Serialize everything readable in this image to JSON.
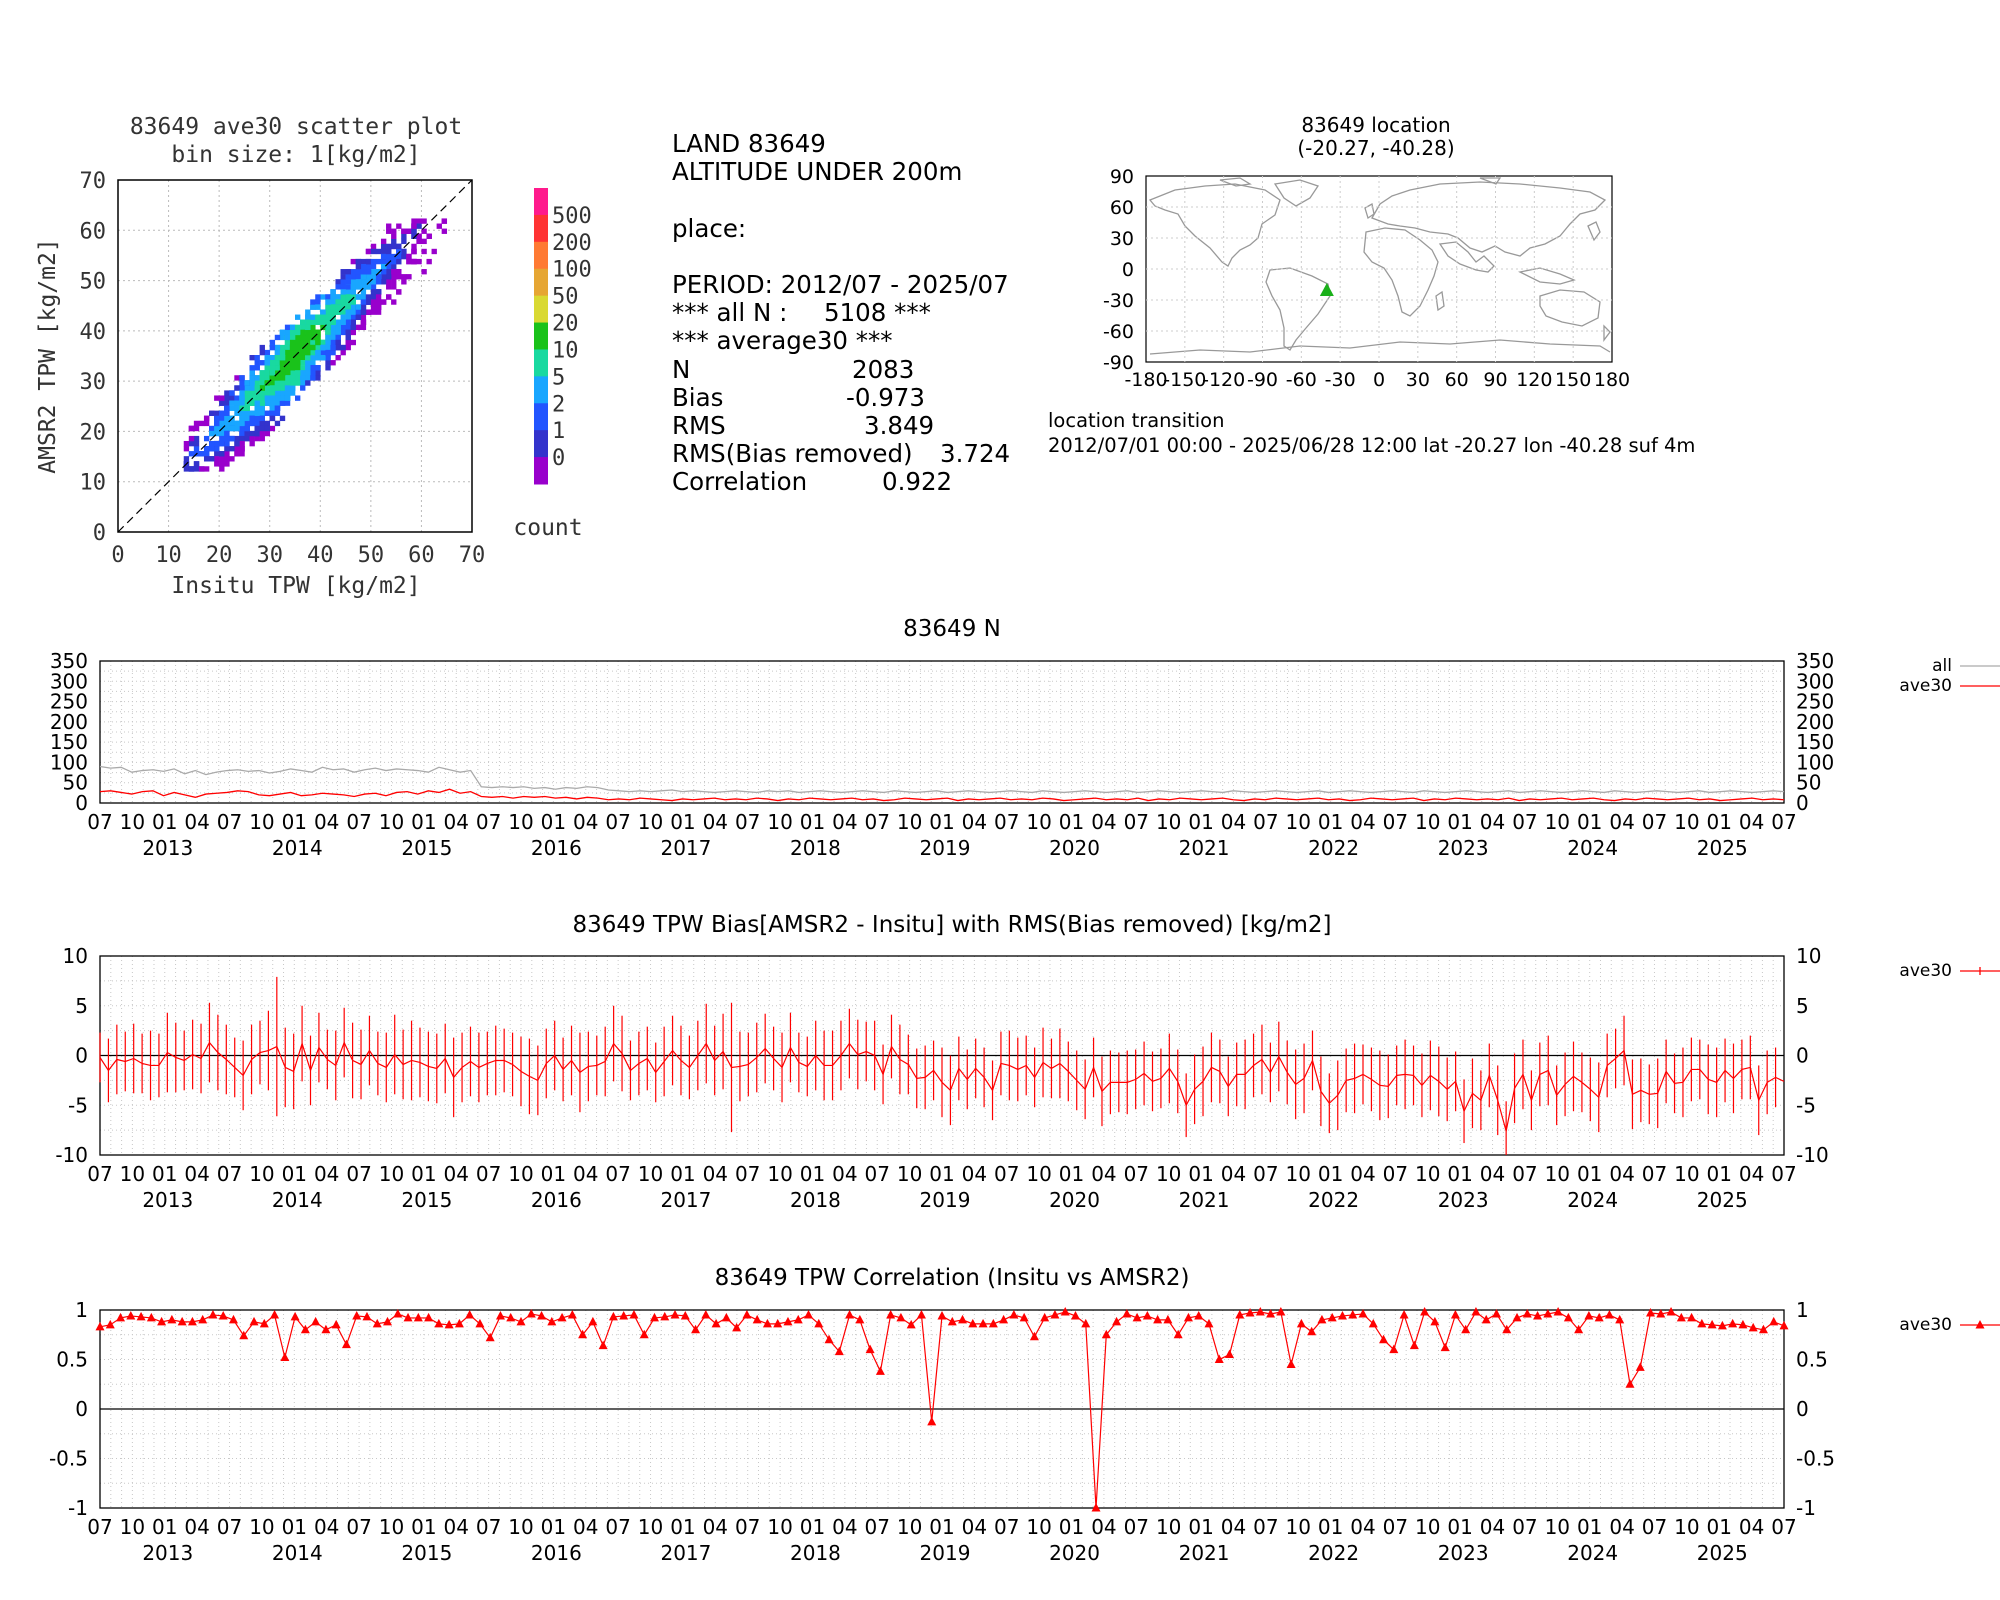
{
  "scatter": {
    "title_line1": "83649 ave30 scatter plot",
    "title_line2": "bin size: 1[kg/m2]",
    "xlabel": "Insitu TPW [kg/m2]",
    "ylabel": "AMSR2 TPW [kg/m2]",
    "axis_ticks": [
      "0",
      "10",
      "20",
      "30",
      "40",
      "50",
      "60",
      "70"
    ],
    "colorbar_labels": [
      "500",
      "200",
      "100",
      "50",
      "20",
      "10",
      "5",
      "2",
      "1",
      "0"
    ],
    "colorbar_colors": [
      "#ff1a8c",
      "#ff3333",
      "#ff7a33",
      "#e6a633",
      "#d9d933",
      "#1ac21a",
      "#19d9a0",
      "#19a6ff",
      "#2255ff",
      "#3333cc",
      "#9900cc"
    ],
    "colorbar_title": "count"
  },
  "stats": {
    "line1": "LAND 83649",
    "line2": "ALTITUDE UNDER 200m",
    "line3": "place:",
    "line4": "PERIOD: 2012/07 - 2025/07",
    "all_n_label": "*** all N :",
    "all_n_value": "5108 ***",
    "avg_label": "*** average30 ***",
    "n_label": "N",
    "n_value": "2083",
    "bias_label": "Bias",
    "bias_value": "-0.973",
    "rms_label": "RMS",
    "rms_value": "3.849",
    "rmsbr_label": "RMS(Bias removed)",
    "rmsbr_value": "3.724",
    "corr_label": "Correlation",
    "corr_value": "0.922"
  },
  "location": {
    "title_line1": "83649 location",
    "title_line2": "(-20.27, -40.28)",
    "lat_ticks": [
      "90",
      "60",
      "30",
      "0",
      "-30",
      "-60",
      "-90"
    ],
    "lon_ticks": [
      "-180",
      "-150",
      "-120",
      "-90",
      "-60",
      "-30",
      "0",
      "30",
      "60",
      "90",
      "120",
      "150",
      "180"
    ],
    "marker_lat": -20.27,
    "marker_lon": -40.28,
    "marker_color": "#1ab01a",
    "transition_title": "location transition",
    "transition_text": "2012/07/01 00:00 - 2025/06/28 12:00 lat -20.27 lon -40.28 suf 4m"
  },
  "time_axis": {
    "month_labels": [
      "07",
      "10",
      "01",
      "04"
    ],
    "year_labels": [
      "2013",
      "2014",
      "2015",
      "2016",
      "2017",
      "2018",
      "2019",
      "2020",
      "2021",
      "2022",
      "2023",
      "2024",
      "2025"
    ]
  },
  "chart_data": [
    {
      "type": "line",
      "title": "83649 N",
      "x_start": "2012-07",
      "x_end": "2025-07",
      "y_ticks": [
        "350",
        "300",
        "250",
        "200",
        "150",
        "100",
        "50",
        "0"
      ],
      "ylim": [
        0,
        350
      ],
      "legend_position": "right",
      "series": [
        {
          "name": "all",
          "color": "#aaaaaa",
          "values": [
            90,
            86,
            88,
            76,
            80,
            82,
            78,
            84,
            72,
            80,
            70,
            76,
            80,
            82,
            78,
            80,
            74,
            78,
            84,
            80,
            76,
            88,
            82,
            84,
            76,
            82,
            86,
            80,
            84,
            82,
            80,
            76,
            88,
            82,
            76,
            80,
            40,
            38,
            40,
            38,
            40,
            36,
            38,
            34,
            38,
            36,
            40,
            38,
            32,
            30,
            28,
            30,
            28,
            30,
            32,
            28,
            30,
            28,
            26,
            28,
            30,
            28,
            26,
            30,
            28,
            30,
            26,
            28,
            30,
            28,
            26,
            28,
            30,
            28,
            26,
            30,
            28,
            26,
            28,
            30,
            26,
            28,
            30,
            28,
            26,
            28,
            30,
            28,
            26,
            30,
            28,
            26,
            28,
            30,
            28,
            26,
            28,
            30,
            26,
            28,
            30,
            28,
            26,
            28,
            30,
            28,
            26,
            30,
            28,
            26,
            28,
            30,
            28,
            26,
            28,
            30,
            26,
            28,
            30,
            28,
            26,
            28,
            30,
            28,
            26,
            30,
            28,
            26,
            28,
            30,
            28,
            26,
            28,
            30,
            26,
            28,
            30,
            28,
            26,
            28,
            30,
            28,
            26,
            30,
            28,
            26,
            28,
            30,
            28,
            26,
            28,
            30,
            26,
            28,
            30,
            28,
            26,
            28,
            30,
            28
          ]
        },
        {
          "name": "ave30",
          "color": "#ff0000",
          "values": [
            28,
            30,
            26,
            22,
            28,
            30,
            18,
            26,
            20,
            14,
            22,
            24,
            26,
            30,
            28,
            20,
            18,
            22,
            26,
            18,
            20,
            24,
            22,
            20,
            16,
            22,
            24,
            18,
            26,
            28,
            22,
            30,
            26,
            34,
            24,
            28,
            16,
            14,
            16,
            12,
            16,
            14,
            16,
            12,
            14,
            10,
            14,
            12,
            8,
            10,
            8,
            12,
            10,
            8,
            6,
            10,
            8,
            10,
            12,
            8,
            10,
            8,
            12,
            10,
            6,
            10,
            8,
            12,
            10,
            8,
            10,
            12,
            8,
            10,
            6,
            8,
            12,
            10,
            8,
            10,
            12,
            6,
            10,
            8,
            10,
            12,
            8,
            10,
            8,
            12,
            10,
            6,
            8,
            10,
            12,
            8,
            10,
            8,
            12,
            6,
            10,
            8,
            12,
            10,
            8,
            10,
            12,
            8,
            6,
            10,
            8,
            12,
            10,
            8,
            10,
            12,
            8,
            10,
            6,
            8,
            12,
            10,
            8,
            10,
            12,
            6,
            10,
            8,
            12,
            10,
            8,
            10,
            8,
            12,
            6,
            10,
            8,
            10,
            12,
            8,
            10,
            12,
            8,
            6,
            10,
            8,
            12,
            10,
            8,
            10,
            12,
            8,
            10,
            6,
            8,
            10,
            12,
            8,
            10,
            8
          ]
        }
      ]
    },
    {
      "type": "line",
      "title": "83649 TPW Bias[AMSR2 - Insitu] with RMS(Bias removed) [kg/m2]",
      "x_start": "2012-07",
      "x_end": "2025-07",
      "y_ticks": [
        "10",
        "5",
        "0",
        "-5",
        "-10"
      ],
      "ylim": [
        -10,
        10
      ],
      "legend_position": "right",
      "series": [
        {
          "name": "ave30",
          "color": "#ff0000",
          "values": [
            -0.2,
            -1.5,
            -0.4,
            -0.6,
            -0.3,
            -0.8,
            -1.0,
            -1.0,
            0.3,
            -0.2,
            -0.5,
            0.1,
            -0.3,
            1.3,
            0.3,
            -0.4,
            -1.2,
            -2.0,
            -0.4,
            0.3,
            0.5,
            0.9,
            -1.2,
            -1.6,
            1.2,
            -1.5,
            0.8,
            -0.4,
            -1.0,
            1.3,
            -0.5,
            -0.9,
            0.5,
            -0.8,
            -1.2,
            0.1,
            -0.9,
            -0.5,
            -0.7,
            -1.1,
            -1.3,
            -0.3,
            -2.2,
            -1.2,
            -0.6,
            -1.2,
            -0.8,
            -0.5,
            -0.5,
            -0.9,
            -1.6,
            -2.1,
            -2.5,
            -0.8,
            0.0,
            -1.4,
            -0.5,
            -1.7,
            -1.1,
            -1.0,
            -0.6,
            1.2,
            0.2,
            -1.5,
            -0.8,
            -0.3,
            -1.7,
            -0.6,
            0.5,
            -0.5,
            -1.2,
            0.0,
            1.2,
            -0.5,
            0.4,
            -1.2,
            -1.1,
            -0.9,
            -0.2,
            0.7,
            -0.3,
            -1.2,
            0.8,
            -0.7,
            -1.1,
            0.0,
            -1.0,
            -1.0,
            0.0,
            1.2,
            0.1,
            0.4,
            0.0,
            -1.9,
            0.9,
            -0.4,
            -0.9,
            -2.3,
            -2.2,
            -1.5,
            -2.7,
            -3.5,
            -1.3,
            -2.4,
            -1.3,
            -2.2,
            -3.5,
            -0.8,
            -1.0,
            -1.4,
            -1.0,
            -2.2,
            -0.7,
            -1.3,
            -0.8,
            -1.6,
            -2.5,
            -3.4,
            -1.2,
            -3.6,
            -2.7,
            -2.7,
            -2.7,
            -2.4,
            -1.8,
            -2.6,
            -2.3,
            -1.3,
            -2.6,
            -5.0,
            -3.4,
            -2.6,
            -1.2,
            -1.6,
            -3.1,
            -1.9,
            -1.9,
            -1.0,
            -0.4,
            -1.7,
            -0.1,
            -1.7,
            -2.9,
            -2.3,
            -0.5,
            -3.6,
            -4.8,
            -4.0,
            -2.5,
            -2.3,
            -1.9,
            -2.4,
            -3.0,
            -3.1,
            -2.0,
            -1.9,
            -2.0,
            -3.0,
            -2.0,
            -2.6,
            -3.4,
            -2.6,
            -5.6,
            -3.8,
            -4.5,
            -2.0,
            -4.5,
            -7.6,
            -3.3,
            -1.9,
            -4.5,
            -1.9,
            -1.5,
            -4.0,
            -2.9,
            -2.1,
            -2.7,
            -3.4,
            -4.2,
            -1.0,
            -0.3,
            0.5,
            -3.9,
            -3.5,
            -3.9,
            -3.8,
            -1.6,
            -2.8,
            -2.7,
            -1.4,
            -1.4,
            -2.4,
            -2.7,
            -1.5,
            -2.3,
            -1.4,
            -1.2,
            -4.5,
            -2.7,
            -2.2,
            -2.6
          ]
        },
        {
          "name": "RMS(Bias removed)",
          "color": "#ff0000",
          "values": [
            2.5,
            3.2,
            3.5,
            3.0,
            3.5,
            3.0,
            3.5,
            3.2,
            4.0,
            3.5,
            3.0,
            3.5,
            3.5,
            4.0,
            3.8,
            3.5,
            3.0,
            3.5,
            3.5,
            3.2,
            4.0,
            7.0,
            4.0,
            3.8,
            3.8,
            3.5,
            3.5,
            3.0,
            3.5,
            3.5,
            3.8,
            3.5,
            3.5,
            3.2,
            3.5,
            4.0,
            3.5,
            4.0,
            3.5,
            3.5,
            3.5,
            3.5,
            4.0,
            3.5,
            3.5,
            3.5,
            3.2,
            3.5,
            3.2,
            3.2,
            3.5,
            3.8,
            3.5,
            3.5,
            3.5,
            3.2,
            3.5,
            4.0,
            3.5,
            3.0,
            3.5,
            3.8,
            3.8,
            3.0,
            3.2,
            3.2,
            3.0,
            3.5,
            3.5,
            3.5,
            3.2,
            3.5,
            4.0,
            3.5,
            3.8,
            6.5,
            3.5,
            3.2,
            3.5,
            3.5,
            3.2,
            3.5,
            3.5,
            3.0,
            3.0,
            3.5,
            3.5,
            3.5,
            3.5,
            3.5,
            3.5,
            3.0,
            3.5,
            3.0,
            3.2,
            3.5,
            3.0,
            3.0,
            3.2,
            3.0,
            3.5,
            3.5,
            3.2,
            3.0,
            3.0,
            3.0,
            3.0,
            3.2,
            3.5,
            3.2,
            3.0,
            3.0,
            3.5,
            3.0,
            3.5,
            3.0,
            3.0,
            3.0,
            3.0,
            3.5,
            3.2,
            3.0,
            3.2,
            3.0,
            3.2,
            3.0,
            3.0,
            3.5,
            3.2,
            3.2,
            3.5,
            3.5,
            3.5,
            3.2,
            3.0,
            3.2,
            3.5,
            3.2,
            3.5,
            3.0,
            3.5,
            3.2,
            3.5,
            3.5,
            3.0,
            3.5,
            3.0,
            3.5,
            3.2,
            3.5,
            3.0,
            3.2,
            3.5,
            3.2,
            3.0,
            3.5,
            3.0,
            3.2,
            3.5,
            3.5,
            3.2,
            3.0,
            3.2,
            3.5,
            3.0,
            3.2,
            3.5,
            3.0,
            3.5,
            3.5,
            3.0,
            3.2,
            3.5,
            3.0,
            3.2,
            3.5,
            3.0,
            3.2,
            3.5,
            3.2,
            3.0,
            3.5,
            3.5,
            3.2,
            3.0,
            3.5,
            3.2,
            3.0,
            3.5,
            3.2,
            3.0,
            3.5,
            3.5,
            3.2,
            3.5,
            3.0,
            3.2,
            3.5,
            3.2,
            3.0
          ]
        }
      ]
    },
    {
      "type": "line",
      "title": "83649 TPW Correlation (Insitu vs AMSR2)",
      "x_start": "2012-07",
      "x_end": "2025-07",
      "y_ticks": [
        "1",
        "0.5",
        "0",
        "-0.5",
        "-1"
      ],
      "ylim": [
        -1,
        1
      ],
      "legend_position": "right",
      "series": [
        {
          "name": "ave30",
          "color": "#ff0000",
          "values": [
            0.83,
            0.85,
            0.92,
            0.94,
            0.93,
            0.92,
            0.88,
            0.9,
            0.88,
            0.88,
            0.9,
            0.95,
            0.94,
            0.9,
            0.74,
            0.88,
            0.86,
            0.95,
            0.52,
            0.93,
            0.8,
            0.88,
            0.8,
            0.85,
            0.65,
            0.94,
            0.93,
            0.86,
            0.88,
            0.96,
            0.92,
            0.92,
            0.92,
            0.86,
            0.85,
            0.86,
            0.95,
            0.86,
            0.72,
            0.94,
            0.92,
            0.88,
            0.96,
            0.94,
            0.88,
            0.92,
            0.95,
            0.75,
            0.88,
            0.64,
            0.93,
            0.94,
            0.95,
            0.75,
            0.92,
            0.93,
            0.95,
            0.94,
            0.8,
            0.95,
            0.86,
            0.92,
            0.82,
            0.95,
            0.9,
            0.86,
            0.86,
            0.88,
            0.9,
            0.95,
            0.86,
            0.7,
            0.58,
            0.95,
            0.9,
            0.6,
            0.38,
            0.95,
            0.92,
            0.85,
            0.95,
            -0.13,
            0.94,
            0.88,
            0.9,
            0.86,
            0.86,
            0.86,
            0.9,
            0.95,
            0.92,
            0.73,
            0.92,
            0.95,
            0.98,
            0.94,
            0.86,
            -1.0,
            0.75,
            0.88,
            0.96,
            0.92,
            0.94,
            0.9,
            0.9,
            0.75,
            0.92,
            0.94,
            0.86,
            0.5,
            0.55,
            0.95,
            0.97,
            0.98,
            0.96,
            0.98,
            0.45,
            0.86,
            0.78,
            0.9,
            0.92,
            0.94,
            0.95,
            0.96,
            0.86,
            0.7,
            0.6,
            0.95,
            0.64,
            0.98,
            0.88,
            0.62,
            0.95,
            0.8,
            0.98,
            0.9,
            0.96,
            0.8,
            0.92,
            0.96,
            0.94,
            0.96,
            0.98,
            0.92,
            0.8,
            0.94,
            0.92,
            0.95,
            0.9,
            0.25,
            0.42,
            0.97,
            0.96,
            0.98,
            0.92,
            0.92,
            0.86,
            0.85,
            0.84,
            0.86,
            0.85,
            0.82,
            0.8,
            0.88,
            0.84
          ]
        }
      ]
    }
  ]
}
